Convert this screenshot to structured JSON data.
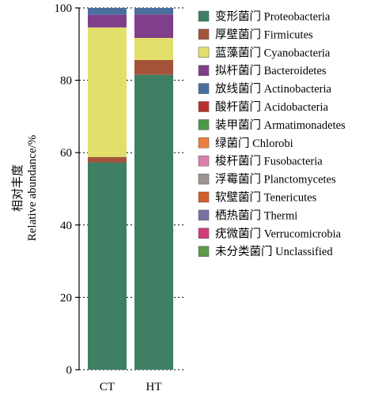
{
  "chart_data": {
    "type": "bar",
    "stacked": true,
    "categories": [
      "CT",
      "HT"
    ],
    "ylabel_cn": "相对丰度",
    "ylabel_en": "Relative abundance/%",
    "ylim": [
      0,
      100
    ],
    "yticks": [
      0,
      20,
      40,
      60,
      80,
      100
    ],
    "grid": "horizontal dotted",
    "legend_position": "right",
    "series": [
      {
        "name": "变形菌门 Proteobacteria",
        "color": "#3f7f63",
        "values": [
          57.3,
          81.5
        ]
      },
      {
        "name": "厚壁菌门 Firmicutes",
        "color": "#a4533a",
        "values": [
          1.5,
          4.1
        ]
      },
      {
        "name": "蓝藻菌门 Cyanobacteria",
        "color": "#e2df6b",
        "values": [
          35.8,
          6.1
        ]
      },
      {
        "name": "拟杆菌门 Bacteroidetes",
        "color": "#7f3f8a",
        "values": [
          3.5,
          6.5
        ]
      },
      {
        "name": "放线菌门 Actinobacteria",
        "color": "#4a6e9e",
        "values": [
          1.9,
          1.8
        ]
      },
      {
        "name": "酸杆菌门 Acidobacteria",
        "color": "#b8302c",
        "values": [
          0,
          0
        ]
      },
      {
        "name": "装甲菌门 Armatimonadetes",
        "color": "#4c9a48",
        "values": [
          0,
          0
        ]
      },
      {
        "name": "绿菌门 Chlorobi",
        "color": "#ec7f3e",
        "values": [
          0,
          0
        ]
      },
      {
        "name": "梭杆菌门 Fusobacteria",
        "color": "#dc7fab",
        "values": [
          0,
          0
        ]
      },
      {
        "name": "浮霉菌门 Planctomycetes",
        "color": "#9b9492",
        "values": [
          0,
          0
        ]
      },
      {
        "name": "软壁菌门 Tenericutes",
        "color": "#d35f2d",
        "values": [
          0,
          0
        ]
      },
      {
        "name": "栖热菌门 Thermi",
        "color": "#7d6fa6",
        "values": [
          0,
          0
        ]
      },
      {
        "name": "疣微菌门 Verrucomicrobia",
        "color": "#d23b78",
        "values": [
          0,
          0
        ]
      },
      {
        "name": "未分类菌门 Unclassified",
        "color": "#5e9a4a",
        "values": [
          0,
          0
        ]
      }
    ]
  }
}
